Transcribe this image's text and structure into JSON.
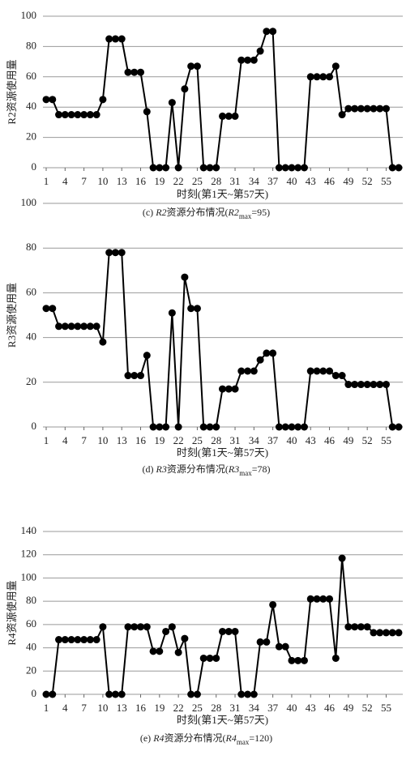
{
  "chart_data": [
    {
      "type": "line",
      "ylabel": "R2资源使用量",
      "xlabel": "时刻(第1天~第57天)",
      "caption": [
        "(c) ",
        "R2",
        "资源分布情况(",
        "R2",
        "max",
        "=95)"
      ],
      "x": [
        1,
        2,
        3,
        4,
        5,
        6,
        7,
        8,
        9,
        10,
        11,
        12,
        13,
        14,
        15,
        16,
        17,
        18,
        19,
        20,
        21,
        22,
        23,
        24,
        25,
        26,
        27,
        28,
        29,
        30,
        31,
        32,
        33,
        34,
        35,
        36,
        37,
        38,
        39,
        40,
        41,
        42,
        43,
        44,
        45,
        46,
        47,
        48,
        49,
        50,
        51,
        52,
        53,
        54,
        55,
        56,
        57
      ],
      "xlim": [
        1,
        57
      ],
      "xticks": [
        1,
        4,
        7,
        10,
        13,
        16,
        19,
        22,
        25,
        28,
        31,
        34,
        37,
        40,
        43,
        46,
        49,
        52,
        55
      ],
      "ylim": [
        0,
        100
      ],
      "yticks": [
        0,
        20,
        40,
        60,
        80,
        100
      ],
      "grid": true,
      "color": "#000000",
      "values": [
        45,
        45,
        35,
        35,
        35,
        35,
        35,
        35,
        35,
        45,
        85,
        85,
        85,
        63,
        63,
        63,
        37,
        0,
        0,
        0,
        43,
        0,
        52,
        67,
        67,
        0,
        0,
        0,
        34,
        34,
        34,
        71,
        71,
        71,
        77,
        90,
        90,
        0,
        0,
        0,
        0,
        0,
        60,
        60,
        60,
        60,
        67,
        35,
        39,
        39,
        39,
        39,
        39,
        39,
        39,
        0,
        0
      ]
    },
    {
      "type": "line",
      "ylabel": "R3资源使用量",
      "xlabel": "时刻(第1天~第57天)",
      "caption": [
        "(d) ",
        "R3",
        "资源分布情况(",
        "R3",
        "max",
        "=78)"
      ],
      "x": [
        1,
        2,
        3,
        4,
        5,
        6,
        7,
        8,
        9,
        10,
        11,
        12,
        13,
        14,
        15,
        16,
        17,
        18,
        19,
        20,
        21,
        22,
        23,
        24,
        25,
        26,
        27,
        28,
        29,
        30,
        31,
        32,
        33,
        34,
        35,
        36,
        37,
        38,
        39,
        40,
        41,
        42,
        43,
        44,
        45,
        46,
        47,
        48,
        49,
        50,
        51,
        52,
        53,
        54,
        55,
        56,
        57
      ],
      "xlim": [
        1,
        57
      ],
      "xticks": [
        1,
        4,
        7,
        10,
        13,
        16,
        19,
        22,
        25,
        28,
        31,
        34,
        37,
        40,
        43,
        46,
        49,
        52,
        55
      ],
      "ylim": [
        0,
        100
      ],
      "yticks": [
        0,
        20,
        40,
        60,
        80,
        100
      ],
      "grid": true,
      "color": "#000000",
      "values": [
        53,
        53,
        45,
        45,
        45,
        45,
        45,
        45,
        45,
        38,
        78,
        78,
        78,
        23,
        23,
        23,
        32,
        0,
        0,
        0,
        51,
        0,
        67,
        53,
        53,
        0,
        0,
        0,
        17,
        17,
        17,
        25,
        25,
        25,
        30,
        33,
        33,
        0,
        0,
        0,
        0,
        0,
        25,
        25,
        25,
        25,
        23,
        23,
        19,
        19,
        19,
        19,
        19,
        19,
        19,
        0,
        0
      ]
    },
    {
      "type": "line",
      "ylabel": "R4资源使用量",
      "xlabel": "时刻(第1天~第57天)",
      "caption": [
        "(e) ",
        "R4",
        "资源分布情况(",
        "R4",
        "max",
        "=120)"
      ],
      "x": [
        1,
        2,
        3,
        4,
        5,
        6,
        7,
        8,
        9,
        10,
        11,
        12,
        13,
        14,
        15,
        16,
        17,
        18,
        19,
        20,
        21,
        22,
        23,
        24,
        25,
        26,
        27,
        28,
        29,
        30,
        31,
        32,
        33,
        34,
        35,
        36,
        37,
        38,
        39,
        40,
        41,
        42,
        43,
        44,
        45,
        46,
        47,
        48,
        49,
        50,
        51,
        52,
        53,
        54,
        55,
        56,
        57
      ],
      "xlim": [
        1,
        57
      ],
      "xticks": [
        1,
        4,
        7,
        10,
        13,
        16,
        19,
        22,
        25,
        28,
        31,
        34,
        37,
        40,
        43,
        46,
        49,
        52,
        55
      ],
      "ylim": [
        0,
        140
      ],
      "yticks": [
        0,
        20,
        40,
        60,
        80,
        100,
        120,
        140
      ],
      "grid": true,
      "color": "#000000",
      "values": [
        0,
        0,
        47,
        47,
        47,
        47,
        47,
        47,
        47,
        58,
        0,
        0,
        0,
        58,
        58,
        58,
        58,
        37,
        37,
        54,
        58,
        36,
        48,
        0,
        0,
        31,
        31,
        31,
        54,
        54,
        54,
        0,
        0,
        0,
        45,
        45,
        77,
        41,
        41,
        29,
        29,
        29,
        82,
        82,
        82,
        82,
        31,
        117,
        58,
        58,
        58,
        58,
        53,
        53,
        53,
        53,
        53
      ]
    }
  ]
}
